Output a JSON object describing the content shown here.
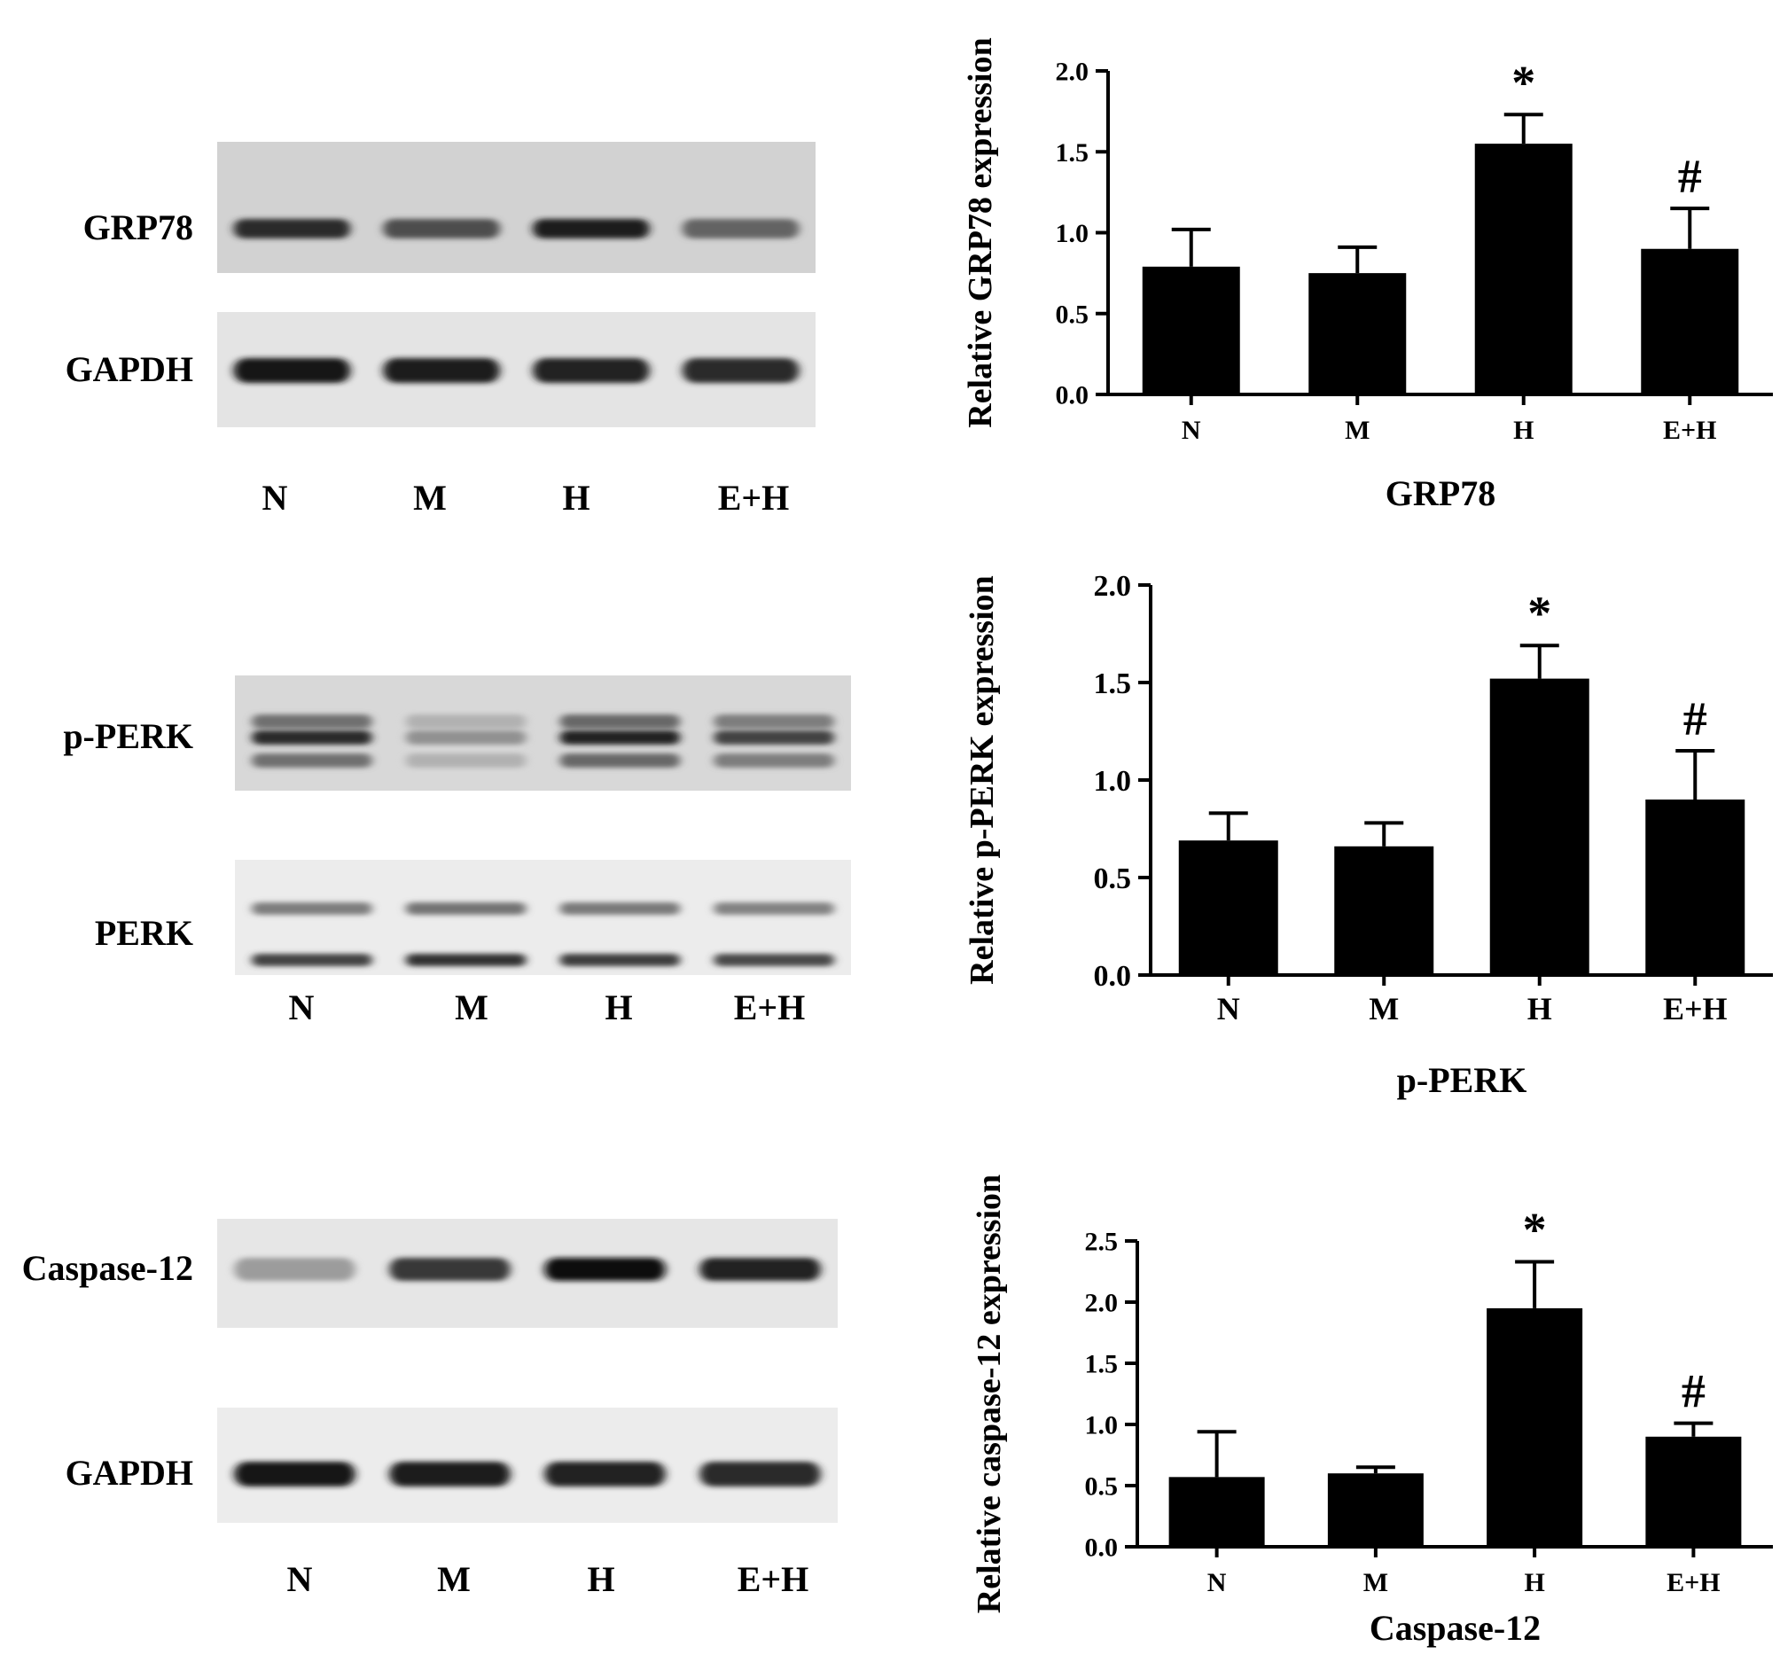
{
  "blots": [
    {
      "lane_labels": [
        "N",
        "M",
        "H",
        "E+H"
      ],
      "rows": [
        {
          "label": "GRP78",
          "intensities": [
            0.85,
            0.7,
            0.92,
            0.6
          ]
        },
        {
          "label": "GAPDH",
          "intensities": [
            0.95,
            0.92,
            0.9,
            0.85
          ]
        }
      ]
    },
    {
      "lane_labels": [
        "N",
        "M",
        "H",
        "E+H"
      ],
      "rows": [
        {
          "label": "p-PERK",
          "intensities": [
            0.85,
            0.4,
            0.9,
            0.75
          ]
        },
        {
          "label": "PERK",
          "intensities": [
            0.75,
            0.82,
            0.78,
            0.72
          ]
        }
      ]
    },
    {
      "lane_labels": [
        "N",
        "M",
        "H",
        "E+H"
      ],
      "rows": [
        {
          "label": "Caspase-12",
          "intensities": [
            0.35,
            0.8,
            0.98,
            0.9
          ]
        },
        {
          "label": "GAPDH",
          "intensities": [
            0.95,
            0.92,
            0.9,
            0.85
          ]
        }
      ]
    }
  ],
  "chart_data": [
    {
      "type": "bar",
      "categories": [
        "N",
        "M",
        "H",
        "E+H"
      ],
      "values": [
        0.79,
        0.75,
        1.55,
        0.9
      ],
      "errors": [
        0.23,
        0.16,
        0.18,
        0.25
      ],
      "annotations": [
        "",
        "",
        "*",
        "#"
      ],
      "ylabel": "Relative GRP78 expression",
      "xlabel": "GRP78",
      "ylim": [
        0,
        2.0
      ],
      "yticks": [
        "0.0",
        "0.5",
        "1.0",
        "1.5",
        "2.0"
      ],
      "grid": false
    },
    {
      "type": "bar",
      "categories": [
        "N",
        "M",
        "H",
        "E+H"
      ],
      "values": [
        0.69,
        0.66,
        1.52,
        0.9
      ],
      "errors": [
        0.14,
        0.12,
        0.17,
        0.25
      ],
      "annotations": [
        "",
        "",
        "*",
        "#"
      ],
      "ylabel": "Relative p-PERK expression",
      "xlabel": "p-PERK",
      "ylim": [
        0,
        2.0
      ],
      "yticks": [
        "0.0",
        "0.5",
        "1.0",
        "1.5",
        "2.0"
      ],
      "grid": false
    },
    {
      "type": "bar",
      "categories": [
        "N",
        "M",
        "H",
        "E+H"
      ],
      "values": [
        0.57,
        0.6,
        1.95,
        0.9
      ],
      "errors": [
        0.37,
        0.05,
        0.38,
        0.11
      ],
      "annotations": [
        "",
        "",
        "*",
        "#"
      ],
      "ylabel": "Relative caspase-12 expression",
      "xlabel": "Caspase-12",
      "ylim": [
        0,
        2.5
      ],
      "yticks": [
        "0.0",
        "0.5",
        "1.0",
        "1.5",
        "2.0",
        "2.5"
      ],
      "grid": false
    }
  ]
}
